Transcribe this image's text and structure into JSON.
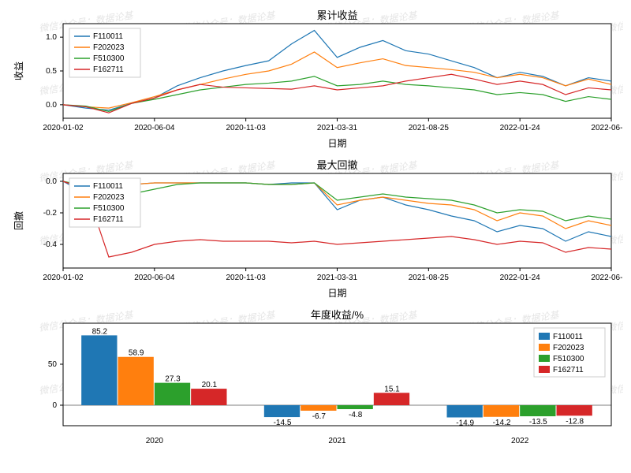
{
  "watermark_text": "微信公众号：数据论基",
  "series_colors": {
    "F110011": "#1f77b4",
    "F202023": "#ff7f0e",
    "F510300": "#2ca02c",
    "F162711": "#d62728"
  },
  "series_order": [
    "F110011",
    "F202023",
    "F510300",
    "F162711"
  ],
  "chart1": {
    "title": "累计收益",
    "xlabel": "日期",
    "ylabel": "收益",
    "ylim": [
      -0.2,
      1.2
    ],
    "yticks": [
      0.0,
      0.5,
      1.0
    ],
    "xticks": [
      "2020-01-02",
      "2020-06-04",
      "2020-11-03",
      "2021-03-31",
      "2021-08-25",
      "2022-01-24",
      "2022-06-28"
    ],
    "xrange": [
      0,
      720
    ],
    "line_width": 1.2,
    "grid_color": "#ffffff",
    "plot_bg": "#ffffff",
    "legend_pos": "upper-left",
    "data": {
      "x": [
        0,
        30,
        60,
        90,
        120,
        150,
        180,
        210,
        240,
        270,
        300,
        330,
        360,
        390,
        420,
        450,
        480,
        510,
        540,
        570,
        600,
        630,
        660,
        690,
        720
      ],
      "F110011": [
        0,
        -0.05,
        -0.08,
        0.02,
        0.1,
        0.28,
        0.4,
        0.5,
        0.58,
        0.65,
        0.9,
        1.1,
        0.7,
        0.85,
        0.95,
        0.8,
        0.75,
        0.65,
        0.55,
        0.4,
        0.48,
        0.42,
        0.28,
        0.4,
        0.35
      ],
      "F202023": [
        0,
        -0.03,
        -0.05,
        0.03,
        0.12,
        0.22,
        0.3,
        0.38,
        0.45,
        0.5,
        0.6,
        0.78,
        0.55,
        0.62,
        0.68,
        0.58,
        0.55,
        0.52,
        0.48,
        0.4,
        0.45,
        0.4,
        0.28,
        0.38,
        0.3
      ],
      "F510300": [
        0,
        -0.02,
        -0.1,
        0.02,
        0.08,
        0.15,
        0.22,
        0.26,
        0.3,
        0.32,
        0.35,
        0.42,
        0.28,
        0.3,
        0.35,
        0.3,
        0.28,
        0.25,
        0.22,
        0.15,
        0.18,
        0.15,
        0.05,
        0.12,
        0.08
      ],
      "F162711": [
        0,
        -0.03,
        -0.12,
        0.02,
        0.1,
        0.22,
        0.3,
        0.26,
        0.25,
        0.24,
        0.23,
        0.28,
        0.22,
        0.25,
        0.28,
        0.35,
        0.4,
        0.45,
        0.38,
        0.3,
        0.35,
        0.3,
        0.15,
        0.25,
        0.22
      ]
    }
  },
  "chart2": {
    "title": "最大回撤",
    "xlabel": "日期",
    "ylabel": "回撤",
    "ylim": [
      -0.55,
      0.05
    ],
    "yticks": [
      -0.4,
      -0.2,
      0.0
    ],
    "xticks": [
      "2020-01-02",
      "2020-06-04",
      "2020-11-03",
      "2021-03-31",
      "2021-08-25",
      "2022-01-24",
      "2022-06-28"
    ],
    "xrange": [
      0,
      720
    ],
    "line_width": 1.2,
    "plot_bg": "#ffffff",
    "legend_pos": "upper-left",
    "data": {
      "x": [
        0,
        30,
        60,
        90,
        120,
        150,
        180,
        210,
        240,
        270,
        300,
        330,
        360,
        390,
        420,
        450,
        480,
        510,
        540,
        570,
        600,
        630,
        660,
        690,
        720
      ],
      "F110011": [
        0,
        -0.08,
        -0.03,
        -0.02,
        -0.01,
        -0.01,
        -0.01,
        -0.01,
        -0.01,
        -0.02,
        -0.01,
        -0.01,
        -0.18,
        -0.12,
        -0.1,
        -0.15,
        -0.18,
        -0.22,
        -0.25,
        -0.32,
        -0.28,
        -0.3,
        -0.38,
        -0.32,
        -0.35
      ],
      "F202023": [
        0,
        -0.05,
        -0.03,
        -0.02,
        -0.01,
        -0.01,
        -0.01,
        -0.01,
        -0.01,
        -0.02,
        -0.02,
        -0.01,
        -0.15,
        -0.12,
        -0.1,
        -0.12,
        -0.14,
        -0.15,
        -0.18,
        -0.25,
        -0.2,
        -0.22,
        -0.3,
        -0.25,
        -0.28
      ],
      "F510300": [
        0,
        -0.03,
        -0.12,
        -0.08,
        -0.05,
        -0.02,
        -0.01,
        -0.01,
        -0.01,
        -0.02,
        -0.02,
        -0.01,
        -0.12,
        -0.1,
        -0.08,
        -0.1,
        -0.11,
        -0.12,
        -0.15,
        -0.2,
        -0.18,
        -0.19,
        -0.25,
        -0.22,
        -0.24
      ],
      "F162711": [
        0,
        -0.05,
        -0.48,
        -0.45,
        -0.4,
        -0.38,
        -0.37,
        -0.38,
        -0.38,
        -0.38,
        -0.39,
        -0.38,
        -0.4,
        -0.39,
        -0.38,
        -0.37,
        -0.36,
        -0.35,
        -0.37,
        -0.4,
        -0.38,
        -0.39,
        -0.45,
        -0.42,
        -0.43
      ]
    }
  },
  "chart3": {
    "title": "年度收益/%",
    "ylim": [
      -25,
      100
    ],
    "yticks": [
      0,
      50
    ],
    "categories": [
      "2020",
      "2021",
      "2022"
    ],
    "bar_width": 0.2,
    "legend_pos": "upper-right",
    "plot_bg": "#ffffff",
    "data": {
      "F110011": [
        85.2,
        -14.5,
        -14.9
      ],
      "F202023": [
        58.9,
        -6.7,
        -14.2
      ],
      "F510300": [
        27.3,
        -4.8,
        -13.5
      ],
      "F162711": [
        20.1,
        15.1,
        -12.8
      ]
    }
  }
}
